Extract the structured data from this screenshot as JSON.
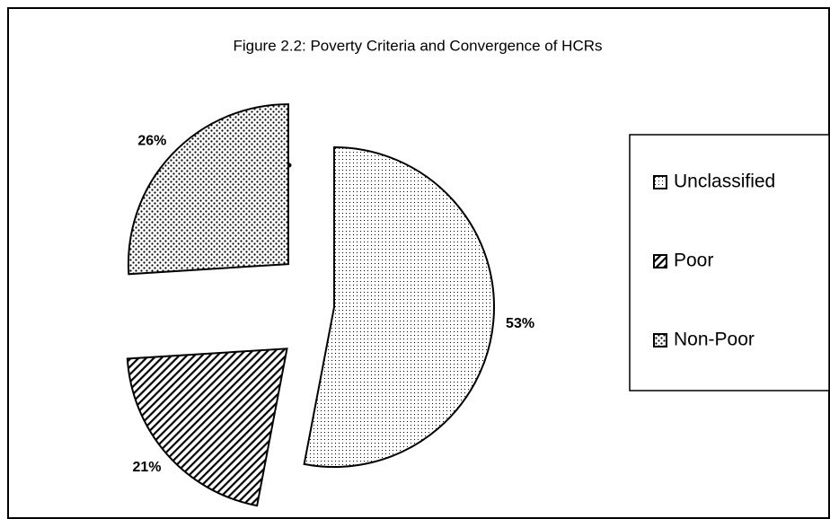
{
  "chart_data": {
    "type": "pie",
    "title": "Figure 2.2: Poverty Criteria and Convergence of HCRs",
    "categories": [
      "Unclassified",
      "Poor",
      "Non-Poor"
    ],
    "values": [
      53,
      21,
      26
    ],
    "value_labels": [
      "53%",
      "21%",
      "26%"
    ]
  }
}
